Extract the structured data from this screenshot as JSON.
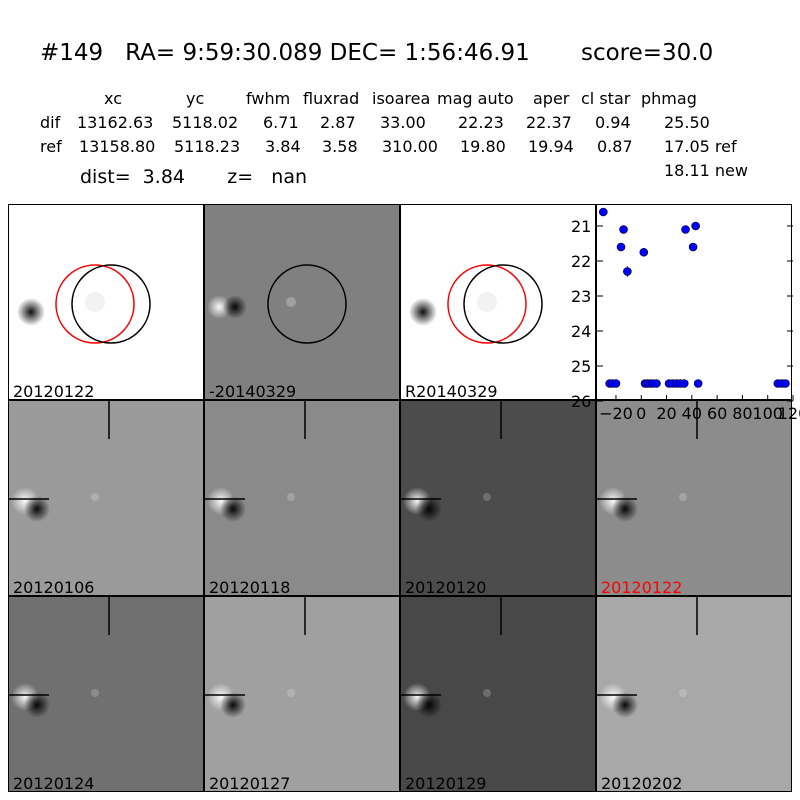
{
  "header": {
    "title": "#149   RA= 9:59:30.089 DEC= 1:56:46.91       score=30.0",
    "columns": [
      "xc",
      "yc",
      "fwhm",
      "fluxrad",
      "isoarea",
      "mag auto",
      "aper",
      "cl star",
      "phmag"
    ],
    "rows": [
      {
        "label": "dif",
        "values": [
          "13162.63",
          "5118.02",
          "6.71",
          "2.87",
          "33.00",
          "22.23",
          "22.37",
          "0.94",
          "25.50"
        ]
      },
      {
        "label": "ref",
        "values": [
          "13158.80",
          "5118.23",
          "3.84",
          "3.58",
          "310.00",
          "19.80",
          "19.94",
          "0.87",
          "17.05 ref"
        ]
      }
    ],
    "extra_phmag": "18.11 new",
    "dist_line": "dist=  3.84       z=   nan"
  },
  "top_panels": [
    {
      "label": "20120122",
      "bg": "#ffffff",
      "circles": [
        "red",
        "black"
      ]
    },
    {
      "label": "-20140329",
      "bg": "#808080",
      "circles": [
        "black"
      ]
    },
    {
      "label": "R20140329",
      "bg": "#ffffff",
      "circles": [
        "red",
        "black"
      ]
    }
  ],
  "grid_panels": [
    {
      "label": "20120106",
      "bg": "#9a9a9a",
      "label_color": "#000000"
    },
    {
      "label": "20120118",
      "bg": "#8a8a8a",
      "label_color": "#000000"
    },
    {
      "label": "20120120",
      "bg": "#4c4c4c",
      "label_color": "#000000"
    },
    {
      "label": "20120122",
      "bg": "#8c8c8c",
      "label_color": "#ff0000"
    },
    {
      "label": "20120124",
      "bg": "#707070",
      "label_color": "#000000"
    },
    {
      "label": "20120127",
      "bg": "#a0a0a0",
      "label_color": "#000000"
    },
    {
      "label": "20120129",
      "bg": "#484848",
      "label_color": "#000000"
    },
    {
      "label": "20120202",
      "bg": "#a8a8a8",
      "label_color": "#000000"
    }
  ],
  "chart_data": {
    "type": "scatter",
    "xlim": [
      -35,
      120
    ],
    "ylim": [
      26,
      20.4
    ],
    "y_inverted": true,
    "x_ticks": [
      -20,
      0,
      20,
      40,
      60,
      80,
      100,
      120
    ],
    "x_tick_labels": [
      "−20",
      "0",
      "20",
      "40",
      "60",
      "80",
      "100",
      "120"
    ],
    "y_ticks": [
      21,
      22,
      23,
      24,
      25,
      26
    ],
    "y_tick_labels": [
      "21",
      "22",
      "23",
      "24",
      "25",
      "26"
    ],
    "marker_color": "#0000ff",
    "points": [
      {
        "x": -30,
        "y": 20.6
      },
      {
        "x": -25,
        "y": 25.5
      },
      {
        "x": -23,
        "y": 25.5
      },
      {
        "x": -20,
        "y": 25.5
      },
      {
        "x": -16,
        "y": 21.6
      },
      {
        "x": -14,
        "y": 21.1
      },
      {
        "x": -11,
        "y": 22.3,
        "err": 0.15
      },
      {
        "x": 2,
        "y": 21.75
      },
      {
        "x": 3,
        "y": 25.5
      },
      {
        "x": 5,
        "y": 25.5
      },
      {
        "x": 7,
        "y": 25.5
      },
      {
        "x": 9,
        "y": 25.5
      },
      {
        "x": 12,
        "y": 25.5
      },
      {
        "x": 22,
        "y": 25.5
      },
      {
        "x": 25,
        "y": 25.5
      },
      {
        "x": 28,
        "y": 25.5
      },
      {
        "x": 31,
        "y": 25.5
      },
      {
        "x": 34,
        "y": 25.5
      },
      {
        "x": 35,
        "y": 21.1
      },
      {
        "x": 41,
        "y": 21.6
      },
      {
        "x": 43,
        "y": 21.0
      },
      {
        "x": 45,
        "y": 25.5
      },
      {
        "x": 108,
        "y": 25.5
      },
      {
        "x": 111,
        "y": 25.5
      },
      {
        "x": 114,
        "y": 25.5
      }
    ]
  }
}
